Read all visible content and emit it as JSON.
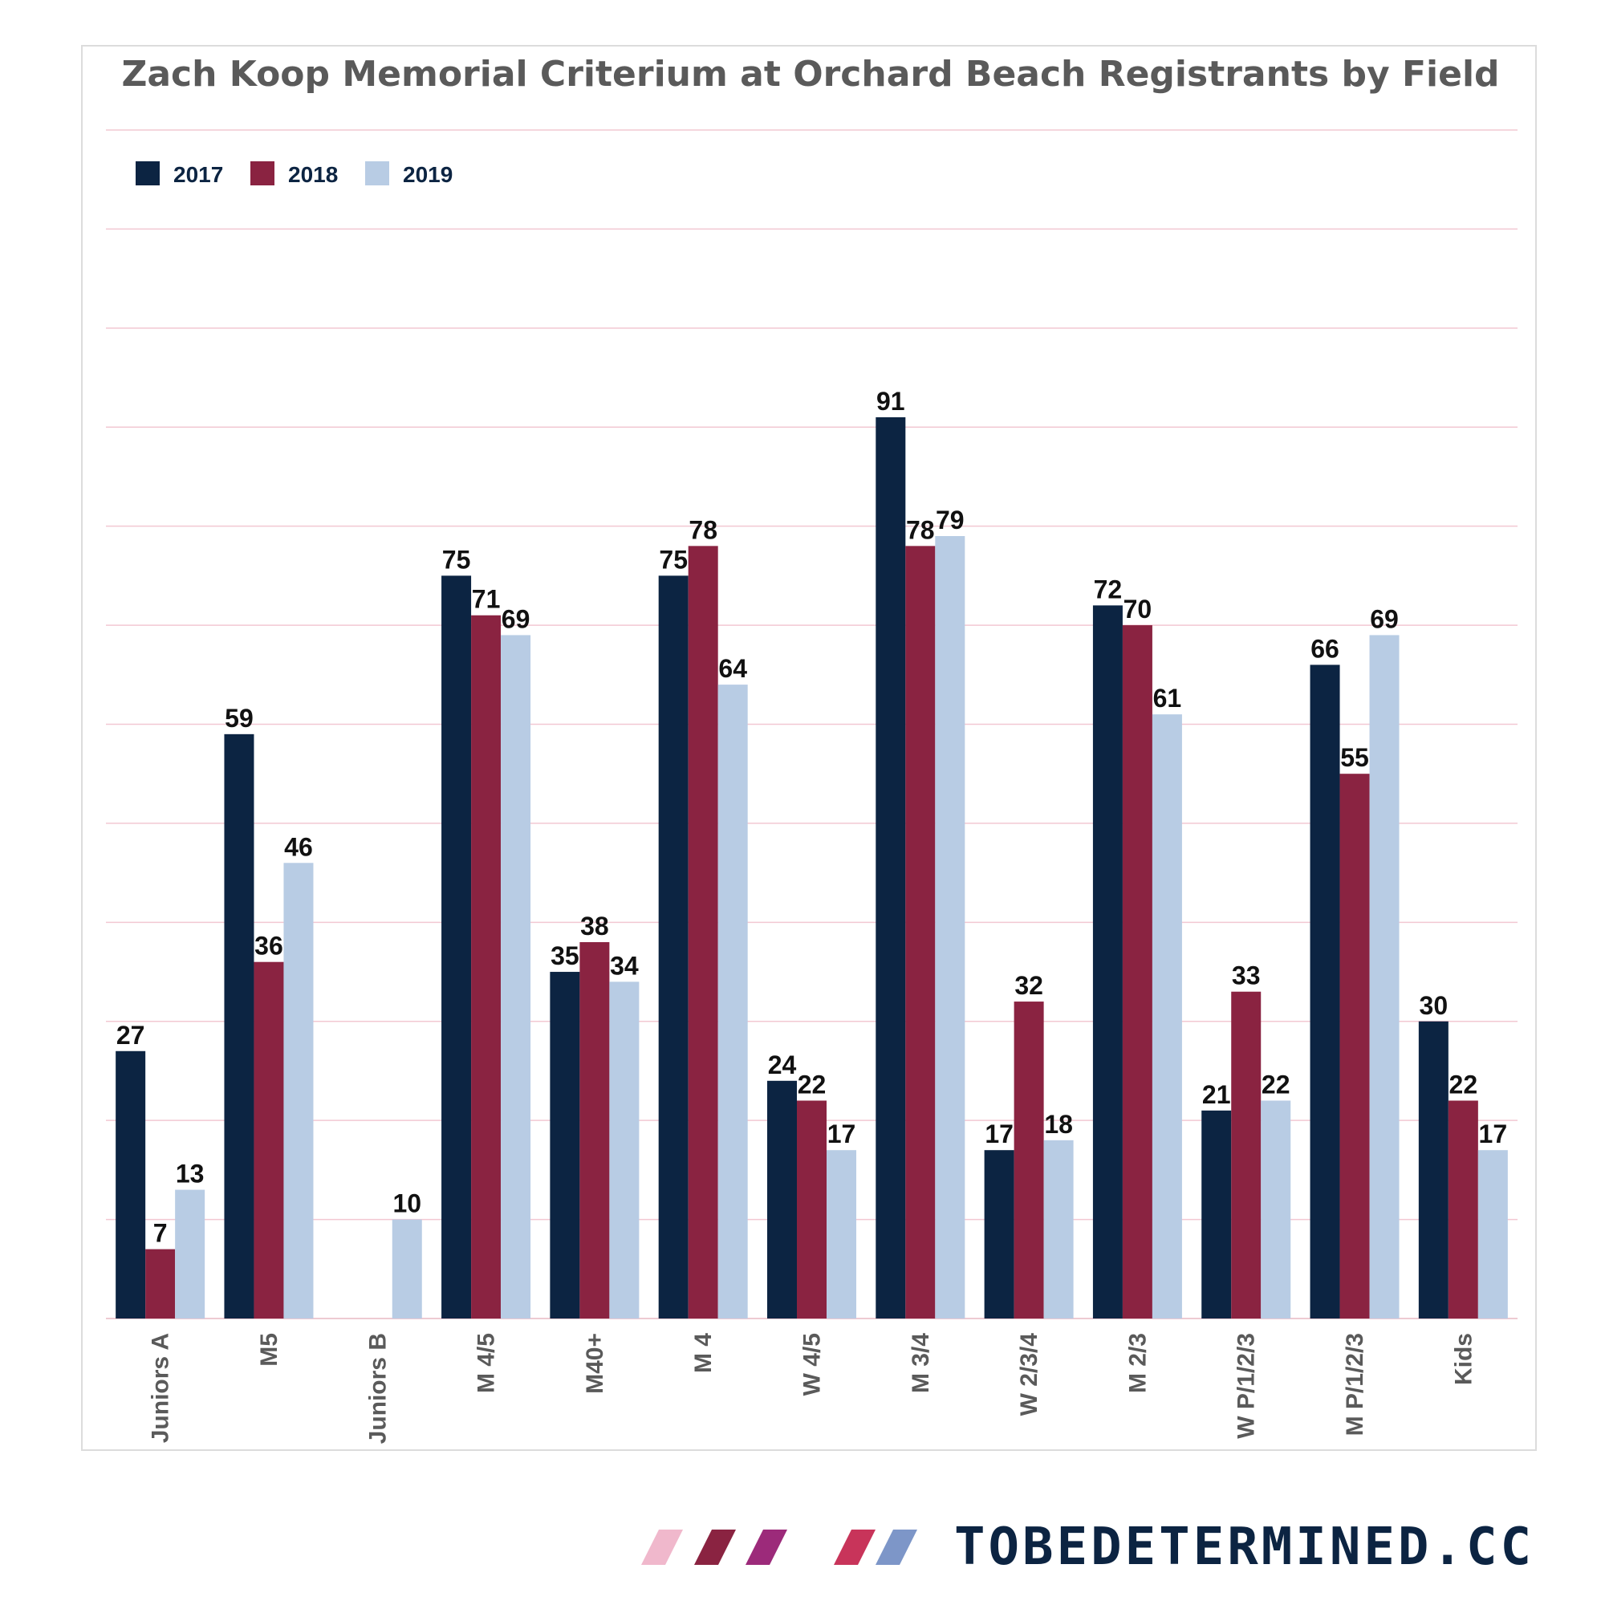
{
  "chart_data": {
    "type": "bar",
    "title": "Zach Koop Memorial Criterium at Orchard Beach Registrants by Field",
    "xlabel": "",
    "ylabel": "",
    "ylim": [
      0,
      120
    ],
    "grid": true,
    "legend_position": "top-left",
    "categories": [
      "Juniors A",
      "M5",
      "Juniors B",
      "M 4/5",
      "M40+",
      "M 4",
      "W 4/5",
      "M 3/4",
      "W 2/3/4",
      "M 2/3",
      "W P/1/2/3",
      "M P/1/2/3",
      "Kids"
    ],
    "series": [
      {
        "name": "2017",
        "color": "#0c2442",
        "values": [
          27,
          59,
          null,
          75,
          35,
          75,
          24,
          91,
          17,
          72,
          21,
          66,
          30
        ]
      },
      {
        "name": "2018",
        "color": "#8a2341",
        "values": [
          7,
          36,
          null,
          71,
          38,
          78,
          22,
          78,
          32,
          70,
          33,
          55,
          22
        ]
      },
      {
        "name": "2019",
        "color": "#b8cce4",
        "values": [
          13,
          46,
          10,
          69,
          34,
          64,
          17,
          79,
          18,
          61,
          22,
          69,
          17
        ]
      }
    ]
  },
  "branding": {
    "text": "TOBEDETERMINED.CC",
    "stripe_colors": [
      "#f0b8cc",
      "#8a2341",
      "#9c2a7a",
      "#c8345a",
      "#7d96c8"
    ]
  }
}
